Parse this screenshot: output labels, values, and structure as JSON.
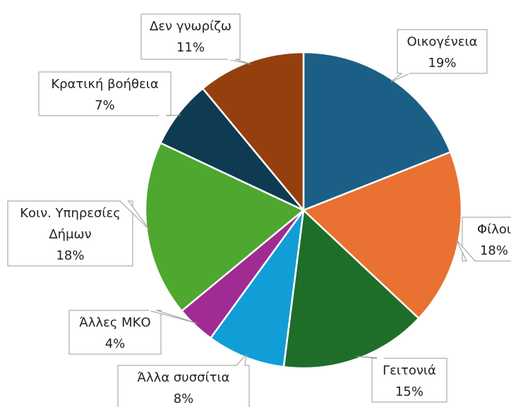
{
  "chart_data": {
    "type": "pie",
    "categories": [
      "Οικογένεια",
      "Φίλοι",
      "Γειτονιά",
      "Άλλα συσσίτια",
      "Άλλες ΜΚΟ",
      "Κοιν. Υπηρεσίες Δήμων",
      "Κρατική βοήθεια",
      "Δεν γνωρίζω"
    ],
    "values": [
      19,
      18,
      15,
      8,
      4,
      18,
      7,
      11
    ],
    "value_labels": [
      "19%",
      "18%",
      "15%",
      "8%",
      "4%",
      "18%",
      "7%",
      "11%"
    ],
    "colors": [
      "#1b5f86",
      "#e97132",
      "#1e6e2a",
      "#119ed6",
      "#a02b93",
      "#4ea72e",
      "#0e3a52",
      "#953f0e"
    ]
  }
}
